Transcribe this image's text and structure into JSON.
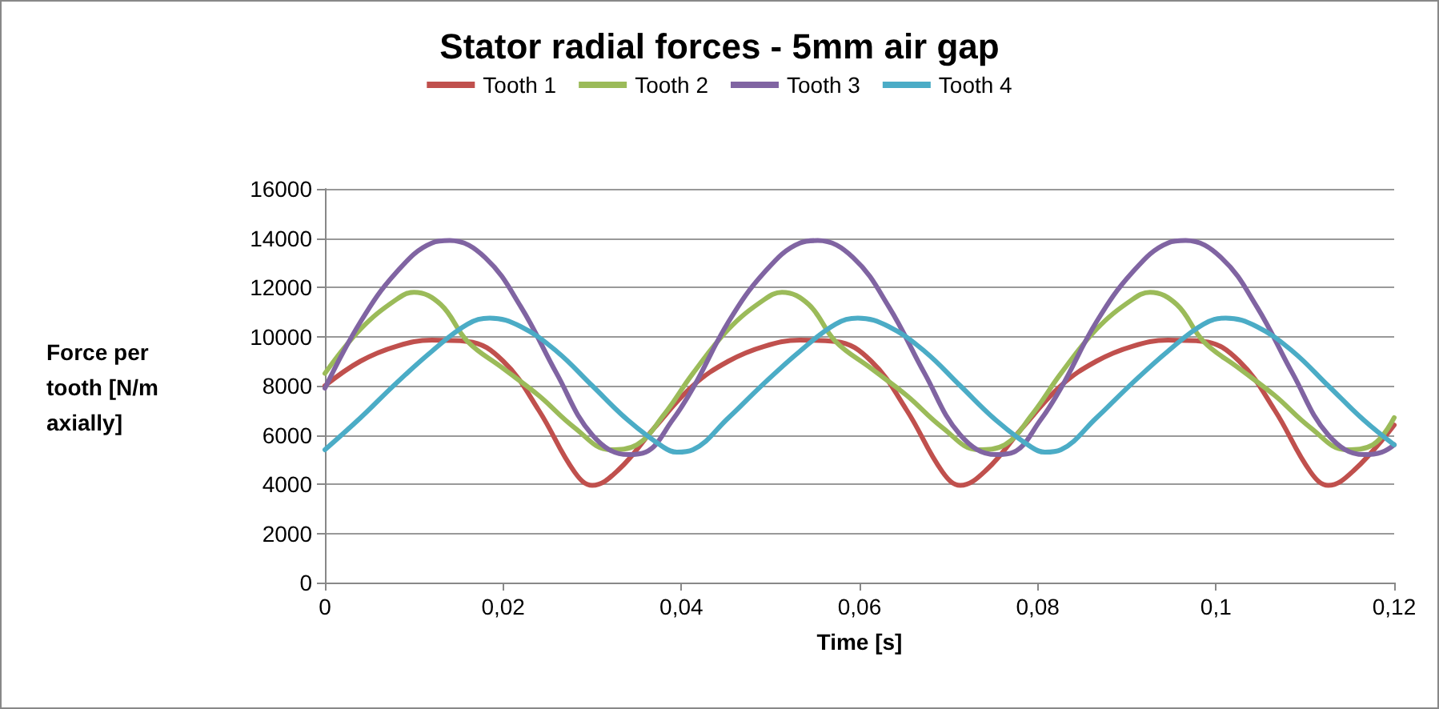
{
  "chart_data": {
    "type": "line",
    "title": "Stator radial forces - 5mm air gap",
    "xlabel": "Time [s]",
    "ylabel": "Force per tooth [N/m axially]",
    "xlim": [
      0,
      0.12
    ],
    "xticks": [
      0,
      {
        "value": 0.02,
        "label": "0,02"
      },
      {
        "value": 0.04,
        "label": "0,04"
      },
      {
        "value": 0.06,
        "label": "0,06"
      },
      {
        "value": 0.08,
        "label": "0,08"
      },
      {
        "value": 0.1,
        "label": "0,1"
      },
      {
        "value": 0.12,
        "label": "0,12"
      }
    ],
    "ylim": [
      0,
      16000
    ],
    "yticks": [
      0,
      2000,
      4000,
      6000,
      8000,
      10000,
      12000,
      14000,
      16000
    ],
    "grid": "y",
    "legend": "top",
    "marker": "none",
    "line_style": "solid",
    "series": [
      {
        "name": "Tooth 1",
        "color": "#c0504d",
        "x": [
          0,
          0.004,
          0.008,
          0.012,
          0.016,
          0.02,
          0.024,
          0.028,
          0.03,
          0.033,
          0.037,
          0.0413,
          0.0453,
          0.0493,
          0.0533,
          0.0573,
          0.0613,
          0.0653,
          0.0693,
          0.0713,
          0.0743,
          0.0783,
          0.0826,
          0.0866,
          0.0906,
          0.0946,
          0.0986,
          0.1026,
          0.1066,
          0.1106,
          0.1126,
          0.1156,
          0.12
        ],
        "values": [
          8000,
          9000,
          9600,
          9850,
          9800,
          9000,
          7000,
          4500,
          3950,
          4600,
          6300,
          8000,
          9000,
          9600,
          9850,
          9800,
          9000,
          7000,
          4500,
          3950,
          4600,
          6300,
          8000,
          9000,
          9600,
          9850,
          9800,
          9000,
          7000,
          4500,
          3950,
          4600,
          6400
        ]
      },
      {
        "name": "Tooth 2",
        "color": "#9bbb59",
        "x": [
          0,
          0.004,
          0.008,
          0.01,
          0.013,
          0.016,
          0.02,
          0.024,
          0.028,
          0.032,
          0.035,
          0.038,
          0.0413,
          0.0453,
          0.0493,
          0.0513,
          0.0543,
          0.0573,
          0.0613,
          0.0653,
          0.0693,
          0.0733,
          0.0763,
          0.0793,
          0.0826,
          0.0866,
          0.0906,
          0.0926,
          0.0956,
          0.0986,
          0.1026,
          0.1066,
          0.1106,
          0.1146,
          0.1176,
          0.12
        ],
        "values": [
          8500,
          10300,
          11500,
          11800,
          11300,
          9800,
          8700,
          7600,
          6300,
          5400,
          5600,
          6800,
          8500,
          10300,
          11500,
          11800,
          11300,
          9800,
          8700,
          7600,
          6300,
          5400,
          5600,
          6800,
          8500,
          10300,
          11500,
          11800,
          11300,
          9800,
          8700,
          7600,
          6300,
          5400,
          5600,
          6700
        ]
      },
      {
        "name": "Tooth 3",
        "color": "#8064a2",
        "x": [
          0,
          0.004,
          0.008,
          0.012,
          0.014,
          0.018,
          0.022,
          0.026,
          0.03,
          0.034,
          0.036,
          0.039,
          0.0413,
          0.0453,
          0.0493,
          0.0533,
          0.0553,
          0.0593,
          0.0633,
          0.0673,
          0.0713,
          0.0753,
          0.0773,
          0.0803,
          0.0826,
          0.0866,
          0.0906,
          0.0946,
          0.0966,
          0.1006,
          0.1046,
          0.1086,
          0.1126,
          0.1166,
          0.1186,
          0.12
        ],
        "values": [
          7900,
          10600,
          12600,
          13800,
          13900,
          13200,
          11200,
          8500,
          6000,
          5200,
          5300,
          6600,
          7900,
          10600,
          12600,
          13800,
          13900,
          13200,
          11200,
          8500,
          6000,
          5200,
          5300,
          6600,
          7900,
          10600,
          12600,
          13800,
          13900,
          13200,
          11200,
          8500,
          6000,
          5200,
          5300,
          5600
        ]
      },
      {
        "name": "Tooth 4",
        "color": "#4bacc6",
        "x": [
          0,
          0.004,
          0.008,
          0.012,
          0.016,
          0.0185,
          0.022,
          0.026,
          0.03,
          0.034,
          0.038,
          0.0395,
          0.0413,
          0.0453,
          0.0493,
          0.0533,
          0.0573,
          0.0598,
          0.0633,
          0.0673,
          0.0713,
          0.0753,
          0.0793,
          0.0808,
          0.0826,
          0.0866,
          0.0906,
          0.0946,
          0.0986,
          0.1011,
          0.1046,
          0.1086,
          0.1126,
          0.1166,
          0.12
        ],
        "values": [
          5400,
          6700,
          8100,
          9400,
          10500,
          10750,
          10400,
          9400,
          8000,
          6600,
          5500,
          5300,
          5400,
          6700,
          8100,
          9400,
          10500,
          10750,
          10400,
          9400,
          8000,
          6600,
          5500,
          5300,
          5400,
          6700,
          8100,
          9400,
          10500,
          10750,
          10400,
          9400,
          8000,
          6600,
          5600
        ]
      }
    ]
  }
}
